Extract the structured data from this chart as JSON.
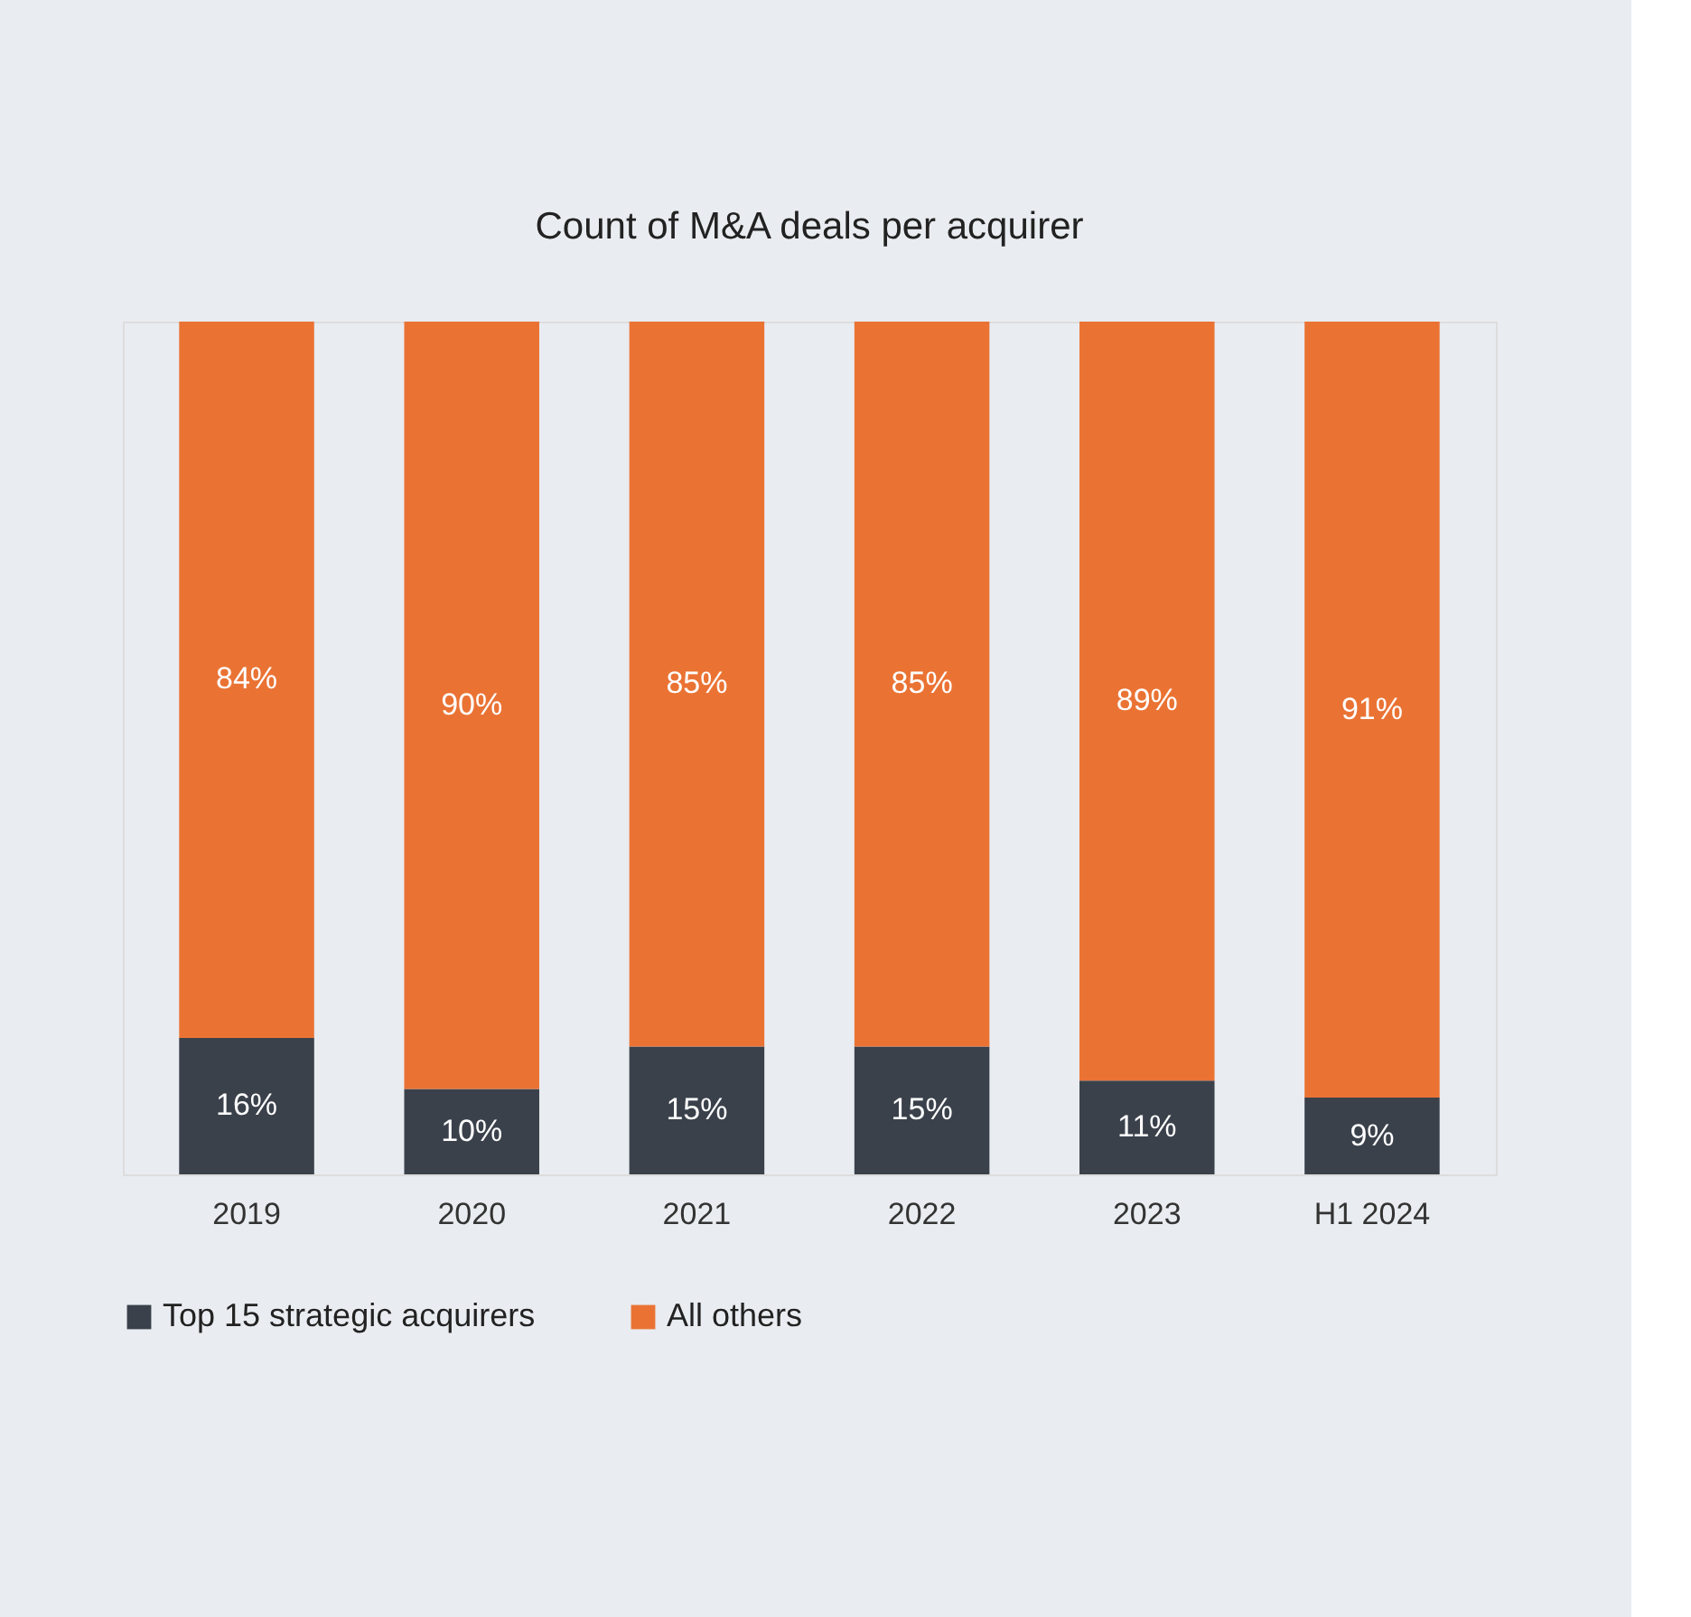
{
  "chart_data": {
    "type": "bar",
    "title": "Count of M&A deals per acquirer",
    "categories": [
      "2019",
      "2020",
      "2021",
      "2022",
      "2023",
      "H1 2024"
    ],
    "stacked": true,
    "legend": "bottom",
    "grid": false,
    "series": [
      {
        "name": "Top 15 strategic acquirers",
        "color": "#3a414b",
        "values": [
          16,
          10,
          15,
          15,
          11,
          9
        ],
        "value_labels": [
          "16%",
          "10%",
          "15%",
          "15%",
          "11%",
          "9%"
        ]
      },
      {
        "name": "All others",
        "color": "#ea7334",
        "values": [
          84,
          90,
          85,
          85,
          89,
          91
        ],
        "value_labels": [
          "84%",
          "90%",
          "85%",
          "85%",
          "89%",
          "91%"
        ]
      }
    ]
  }
}
